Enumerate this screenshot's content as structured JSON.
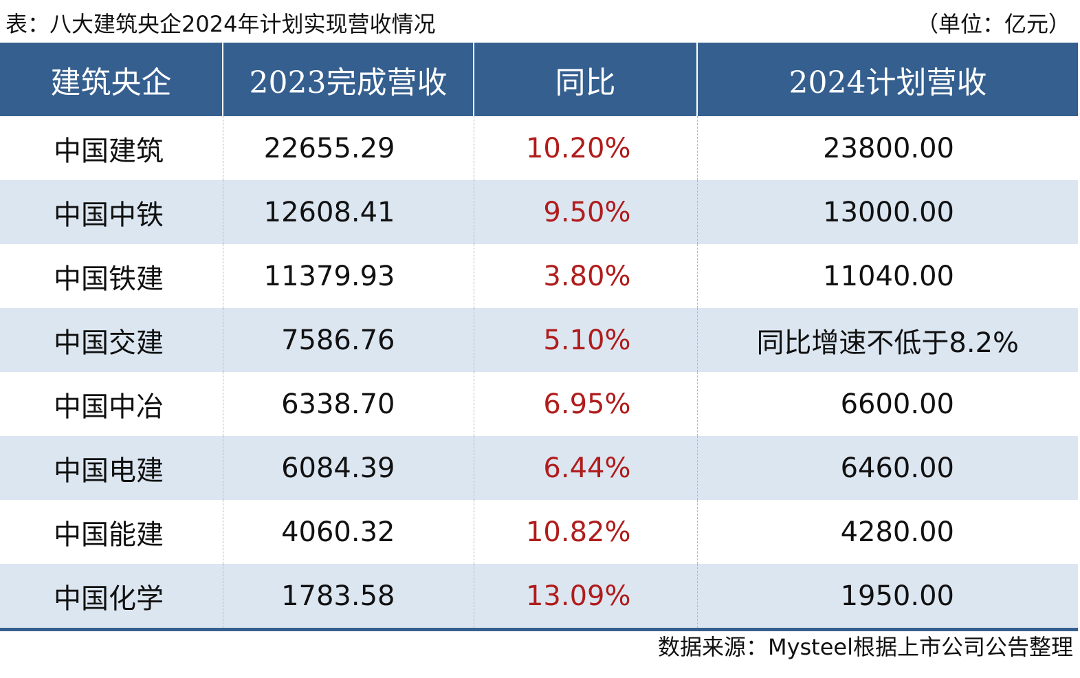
{
  "title": "表：八大建筑央企2024年计划实现营收情况",
  "unit": "（单位：亿元）",
  "source": "数据来源：Mysteel根据上市公司公告整理",
  "colors": {
    "header_bg": "#355f8f",
    "header_text": "#ffffff",
    "alt_row_bg": "#dce6f1",
    "pct_text": "#b01c1c"
  },
  "chart_data": {
    "type": "table",
    "columns": [
      "建筑央企",
      "2023完成营收",
      "同比",
      "2024计划营收"
    ],
    "rows": [
      {
        "company": "中国建筑",
        "revenue_2023": "22655.29",
        "yoy": "10.20%",
        "plan_2024": "23800.00"
      },
      {
        "company": "中国中铁",
        "revenue_2023": "12608.41",
        "yoy": "9.50%",
        "plan_2024": "13000.00"
      },
      {
        "company": "中国铁建",
        "revenue_2023": "11379.93",
        "yoy": "3.80%",
        "plan_2024": "11040.00"
      },
      {
        "company": "中国交建",
        "revenue_2023": "7586.76",
        "yoy": "5.10%",
        "plan_2024": "同比增速不低于8.2%"
      },
      {
        "company": "中国中冶",
        "revenue_2023": "6338.70",
        "yoy": "6.95%",
        "plan_2024": "6600.00"
      },
      {
        "company": "中国电建",
        "revenue_2023": "6084.39",
        "yoy": "6.44%",
        "plan_2024": "6460.00"
      },
      {
        "company": "中国能建",
        "revenue_2023": "4060.32",
        "yoy": "10.82%",
        "plan_2024": "4280.00"
      },
      {
        "company": "中国化学",
        "revenue_2023": "1783.58",
        "yoy": "13.09%",
        "plan_2024": "1950.00"
      }
    ]
  }
}
